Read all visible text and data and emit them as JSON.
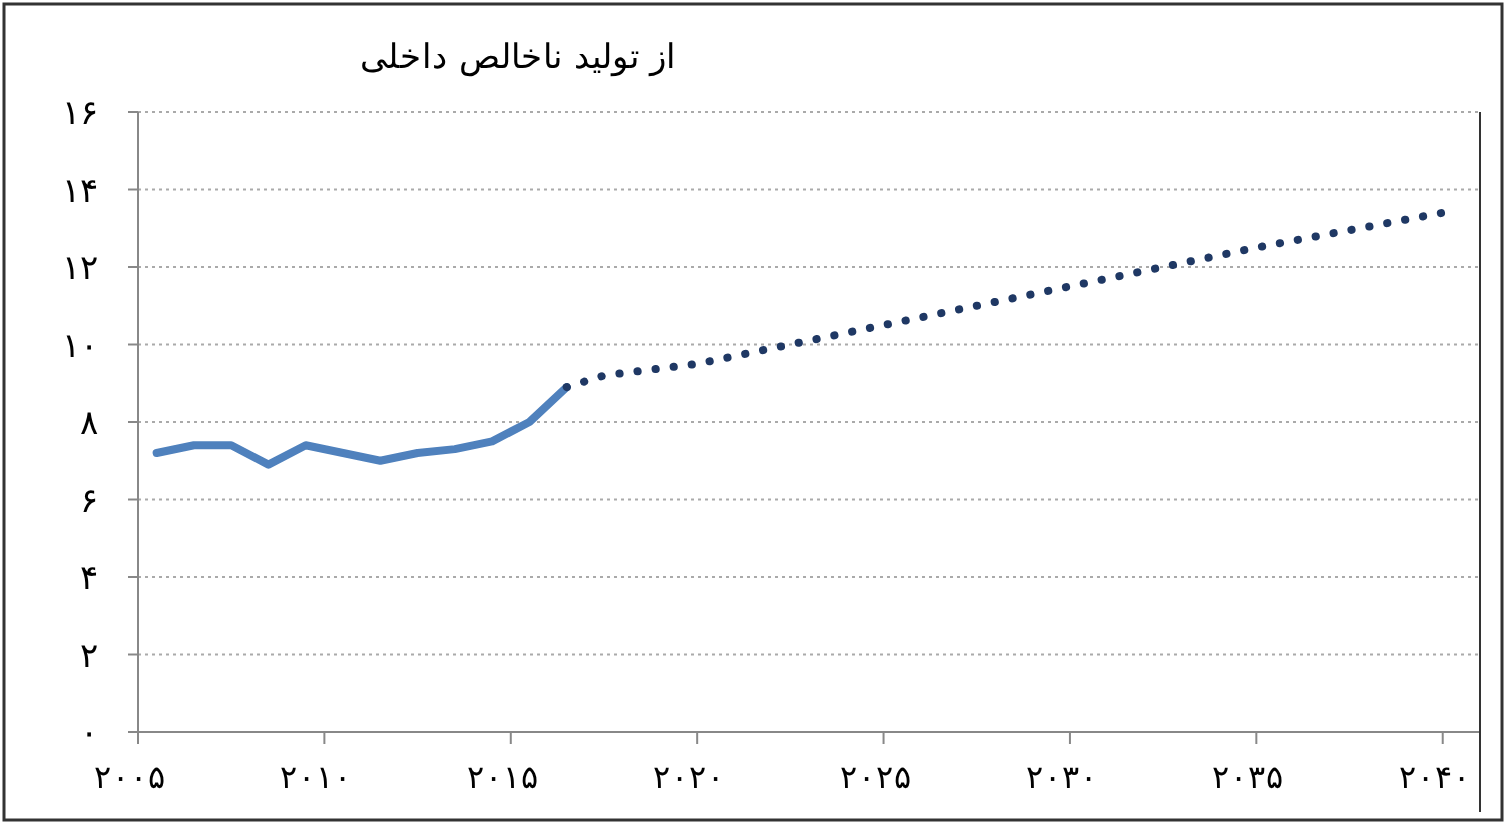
{
  "chart_data": {
    "type": "line",
    "ylabel": "از تولید ناخالص داخلی",
    "series": [
      {
        "color": "#4f81bd",
        "line_style": "solid",
        "x": [
          2005.5,
          2006.5,
          2007.5,
          2008.5,
          2009.5,
          2010.5,
          2011.5,
          2012.5,
          2013.5,
          2014.5,
          2015.5,
          2016.5
        ],
        "values": [
          7.2,
          7.4,
          7.4,
          6.9,
          7.4,
          7.2,
          7.0,
          7.2,
          7.3,
          7.5,
          8.0,
          8.9
        ]
      },
      {
        "color": "#1f3864",
        "line_style": "dotted",
        "x": [
          2016.5,
          2017.5,
          2020,
          2025,
          2030,
          2035,
          2040
        ],
        "values": [
          8.9,
          9.2,
          9.5,
          10.5,
          11.5,
          12.5,
          13.4
        ]
      }
    ],
    "xlim": [
      2005,
      2041
    ],
    "ylim": [
      0,
      16
    ],
    "xticks": [
      {
        "value": 2005,
        "label": "۲۰۰۵"
      },
      {
        "value": 2010,
        "label": "۲۰۱۰"
      },
      {
        "value": 2015,
        "label": "۲۰۱۵"
      },
      {
        "value": 2020,
        "label": "۲۰۲۰"
      },
      {
        "value": 2025,
        "label": "۲۰۲۵"
      },
      {
        "value": 2030,
        "label": "۲۰۳۰"
      },
      {
        "value": 2035,
        "label": "۲۰۳۵"
      },
      {
        "value": 2040,
        "label": "۲۰۴۰"
      }
    ],
    "yticks": [
      {
        "value": 0,
        "label": "۰"
      },
      {
        "value": 2,
        "label": "۲"
      },
      {
        "value": 4,
        "label": "۴"
      },
      {
        "value": 6,
        "label": "۶"
      },
      {
        "value": 8,
        "label": "۸"
      },
      {
        "value": 10,
        "label": "۱۰"
      },
      {
        "value": 12,
        "label": "۱۲"
      },
      {
        "value": 14,
        "label": "۱۴"
      },
      {
        "value": 16,
        "label": "۱۶"
      }
    ],
    "grid": "y"
  }
}
